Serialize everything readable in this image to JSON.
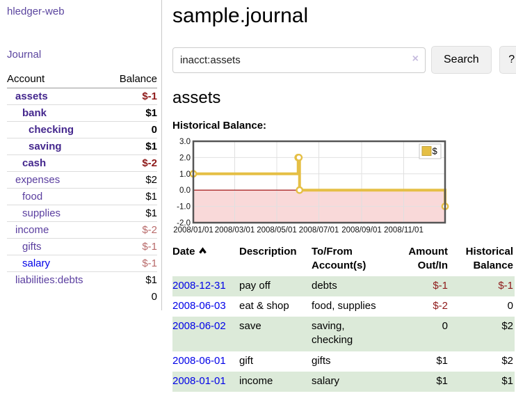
{
  "sidebar": {
    "app_title": "hledger-web",
    "journal_label": "Journal",
    "accounts_table": {
      "headers": {
        "account": "Account",
        "balance": "Balance"
      },
      "rows": [
        {
          "name": "assets",
          "balance": "$-1",
          "depth": 1,
          "bold": true,
          "bal": "neg"
        },
        {
          "name": "bank",
          "balance": "$1",
          "depth": 2,
          "bold": true,
          "bal": ""
        },
        {
          "name": "checking",
          "balance": "0",
          "depth": 3,
          "bold": true,
          "bal": ""
        },
        {
          "name": "saving",
          "balance": "$1",
          "depth": 3,
          "bold": true,
          "bal": ""
        },
        {
          "name": "cash",
          "balance": "$-2",
          "depth": 2,
          "bold": true,
          "bal": "neg"
        },
        {
          "name": "expenses",
          "balance": "$2",
          "depth": 1,
          "bold": false,
          "bal": ""
        },
        {
          "name": "food",
          "balance": "$1",
          "depth": 2,
          "bold": false,
          "bal": ""
        },
        {
          "name": "supplies",
          "balance": "$1",
          "depth": 2,
          "bold": false,
          "bal": ""
        },
        {
          "name": "income",
          "balance": "$-2",
          "depth": 1,
          "bold": false,
          "bal": "neg-muted"
        },
        {
          "name": "gifts",
          "balance": "$-1",
          "depth": 2,
          "bold": false,
          "bal": "neg-muted"
        },
        {
          "name": "salary",
          "balance": "$-1",
          "depth": 2,
          "bold": false,
          "bal": "neg-muted",
          "blue": true
        },
        {
          "name": "liabilities:debts",
          "balance": "$1",
          "depth": 1,
          "bold": false,
          "bal": ""
        }
      ],
      "total": "0"
    }
  },
  "header": {
    "title": "sample.journal"
  },
  "search": {
    "query": "inacct:assets",
    "clear_icon": "×",
    "search_button": "Search",
    "help_button": "?"
  },
  "account_page": {
    "heading": "assets",
    "chart_label": "Historical Balance:"
  },
  "chart_data": {
    "type": "line",
    "step": true,
    "title": "Historical Balance:",
    "legend": [
      "$"
    ],
    "x_ticks": [
      "2008/01/01",
      "2008/03/01",
      "2008/05/01",
      "2008/07/01",
      "2008/09/01",
      "2008/11/01"
    ],
    "y_ticks": [
      3.0,
      2.0,
      1.0,
      0.0,
      -1.0,
      -2.0
    ],
    "ylim": [
      -2,
      3
    ],
    "xlim": [
      "2008-01-01",
      "2008-12-31"
    ],
    "points": [
      {
        "date": "2008-01-01",
        "value": 1
      },
      {
        "date": "2008-06-01",
        "value": 2
      },
      {
        "date": "2008-06-02",
        "value": 2
      },
      {
        "date": "2008-06-03",
        "value": 0
      },
      {
        "date": "2008-12-31",
        "value": -1
      }
    ],
    "colors": {
      "line": "#e5bf45",
      "marker_fill": "#ffffff",
      "negative_fill": "#f9d9d9",
      "zero_line": "#990000",
      "grid": "#e0e0e0",
      "border": "#555555",
      "legend_square": "#e5bf45",
      "legend_square_border": "#c2a13a"
    }
  },
  "register_table": {
    "headers": {
      "date": "Date",
      "description": "Description",
      "accounts": "To/From Account(s)",
      "amount": "Amount Out/In",
      "balance": "Historical Balance"
    },
    "rows": [
      {
        "date": "2008-12-31",
        "description": "pay off",
        "accounts": "debts",
        "amount": "$-1",
        "amount_neg": true,
        "balance": "$-1",
        "balance_neg": true,
        "green": true
      },
      {
        "date": "2008-06-03",
        "description": "eat & shop",
        "accounts": "food, supplies",
        "amount": "$-2",
        "amount_neg": true,
        "balance": "0",
        "balance_neg": false,
        "green": false
      },
      {
        "date": "2008-06-02",
        "description": "save",
        "accounts": "saving, checking",
        "amount": "0",
        "amount_neg": false,
        "balance": "$2",
        "balance_neg": false,
        "green": true
      },
      {
        "date": "2008-06-01",
        "description": "gift",
        "accounts": "gifts",
        "amount": "$1",
        "amount_neg": false,
        "balance": "$2",
        "balance_neg": false,
        "green": false
      },
      {
        "date": "2008-01-01",
        "description": "income",
        "accounts": "salary",
        "amount": "$1",
        "amount_neg": false,
        "balance": "$1",
        "balance_neg": false,
        "green": true
      }
    ]
  }
}
